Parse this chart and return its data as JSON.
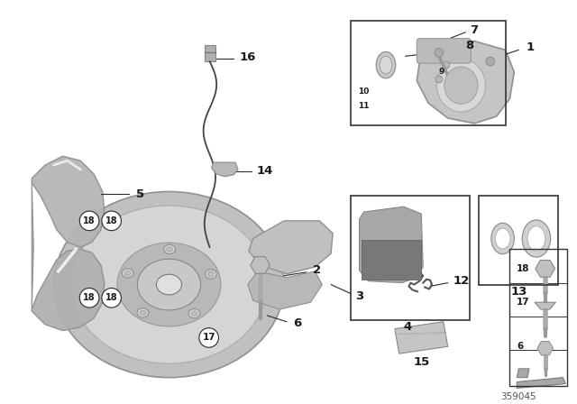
{
  "bg_color": "#ffffff",
  "part_number": "359045",
  "text_color": "#1a1a1a",
  "line_color": "#2a2a2a",
  "box_color": "#333333",
  "gray_light": "#c8c8c8",
  "gray_mid": "#a8a8a8",
  "gray_dark": "#888888",
  "gray_darker": "#666666"
}
